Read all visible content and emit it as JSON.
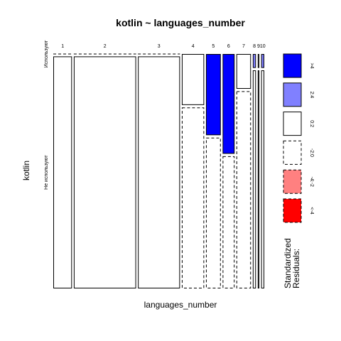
{
  "chart_data": {
    "type": "mosaic",
    "title": "kotlin ~ languages_number",
    "xlabel": "languages_number",
    "ylabel": "kotlin",
    "columns": [
      "1",
      "2",
      "3",
      "4",
      "5",
      "6",
      "7",
      "8",
      "9",
      "10"
    ],
    "rows": [
      "Используют",
      "Не используют"
    ],
    "column_proportions": [
      0.072,
      0.24,
      0.162,
      0.086,
      0.057,
      0.046,
      0.056,
      0.012,
      0.006,
      0.012
    ],
    "row_proportions_within_column": [
      [
        0.0,
        1.0
      ],
      [
        0.0,
        1.0
      ],
      [
        0.0,
        1.0
      ],
      [
        0.22,
        0.78
      ],
      [
        0.35,
        0.65
      ],
      [
        0.43,
        0.57
      ],
      [
        0.15,
        0.85
      ],
      [
        0.06,
        0.94
      ],
      [
        0.06,
        0.94
      ],
      [
        0.06,
        0.94
      ]
    ],
    "residual_category": [
      [
        "0:2",
        "0:2"
      ],
      [
        "0:2",
        "0:2"
      ],
      [
        "0:2",
        "0:2"
      ],
      [
        "0:2",
        "-2:0"
      ],
      [
        ">4",
        "-2:0"
      ],
      [
        ">4",
        "-2:0"
      ],
      [
        "0:2",
        "-2:0"
      ],
      [
        "2:4",
        "0:2"
      ],
      [
        "0:2",
        "0:2"
      ],
      [
        "2:4",
        "0:2"
      ]
    ],
    "legend": {
      "title": "Standardized Residuals:",
      "categories": [
        ">4",
        "2:4",
        "0:2",
        "-2:0",
        "-4:-2",
        "<-4"
      ],
      "fills": [
        "#0000ff",
        "#8080ff",
        "#ffffff",
        "#ffffff",
        "#ff8080",
        "#ff0000"
      ],
      "dashed": [
        false,
        false,
        false,
        true,
        true,
        true
      ]
    }
  }
}
